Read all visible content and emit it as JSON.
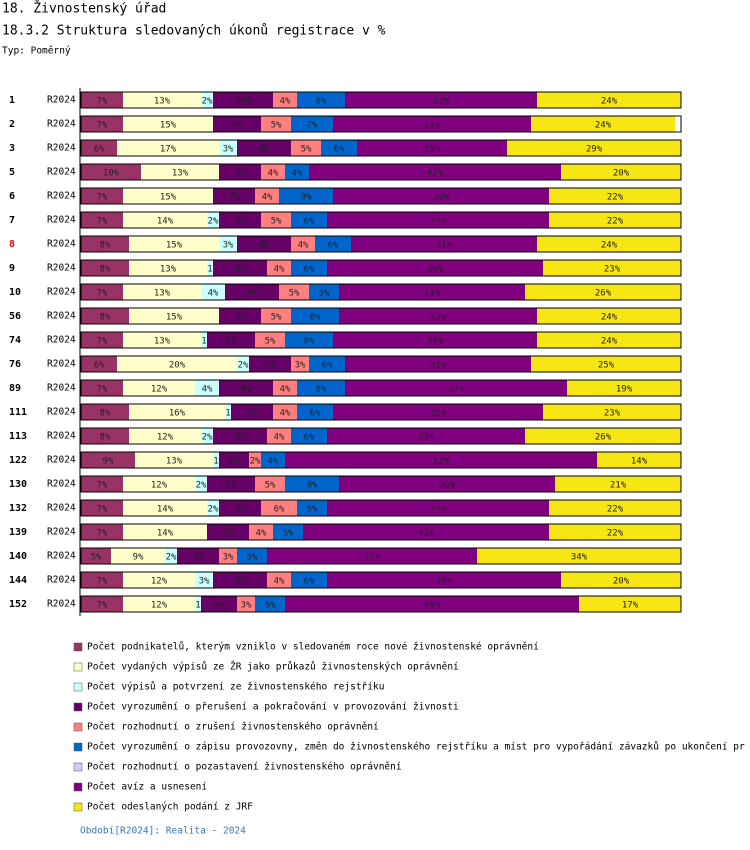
{
  "chart_data": {
    "type": "stacked-bar-horizontal",
    "title": "18. Živnostenský úřad",
    "subtitle": "18.3.2 Struktura sledovaných úkonů registrace v %",
    "chart_kind_label": "Typ: Poměrný",
    "footer": "Období[R2024]: Realita - 2024",
    "period_label": "R2024",
    "highlight": {
      "category": "8",
      "color": "#ff0000"
    },
    "xlim": [
      0,
      100
    ],
    "categories": [
      "1",
      "2",
      "3",
      "5",
      "6",
      "7",
      "8",
      "9",
      "10",
      "56",
      "74",
      "76",
      "89",
      "111",
      "113",
      "122",
      "130",
      "132",
      "139",
      "140",
      "144",
      "152"
    ],
    "series": [
      {
        "name": "Počet podnikatelů, kterým vzniklo v sledovaném roce nové živnostenské oprávnění",
        "color": "#993366",
        "values": [
          7,
          7,
          6,
          10,
          7,
          7,
          8,
          8,
          7,
          8,
          7,
          6,
          7,
          8,
          8,
          9,
          7,
          7,
          7,
          5,
          7,
          7
        ],
        "value_labels": [
          "7%",
          "7%",
          "6%",
          "10%",
          "7%",
          "7%",
          "8%",
          "8%",
          "7%",
          "8%",
          "7%",
          "6%",
          "7%",
          "8%",
          "8%",
          "9%",
          "7%",
          "7%",
          "7%",
          "5%",
          "7%",
          "7%"
        ]
      },
      {
        "name": "Počet vydaných výpisů ze ŽR jako průkazů živnostenských oprávnění",
        "color": "#ffffcc",
        "values": [
          13,
          15,
          17,
          13,
          15,
          14,
          15,
          13,
          13,
          15,
          13,
          20,
          12,
          16,
          12,
          13,
          12,
          14,
          14,
          9,
          12,
          12
        ],
        "value_labels": [
          "13%",
          "15%",
          "17%",
          "13%",
          "15%",
          "14%",
          "15%",
          "13%",
          "13%",
          "15%",
          "13%",
          "20%",
          "12%",
          "16%",
          "12%",
          "13%",
          "12%",
          "14%",
          "14%",
          "9%",
          "12%",
          "12%"
        ]
      },
      {
        "name": "Počet výpisů a potvrzení ze živnostenského rejstříku",
        "color": "#ccffff",
        "values": [
          2,
          0,
          3,
          0,
          0,
          2,
          3,
          1,
          4,
          0,
          1,
          2,
          4,
          1,
          2,
          1,
          2,
          2,
          0,
          2,
          3,
          1
        ],
        "value_labels": [
          "2%",
          null,
          "3%",
          null,
          null,
          "2%",
          "3%",
          "1",
          "4%",
          null,
          "1",
          "2%",
          "4%",
          "1",
          "2%",
          "1",
          "2%",
          "2%",
          null,
          "2%",
          "3%",
          "1"
        ]
      },
      {
        "name": "Počet vyrozumění o přerušení a pokračování v provozování živnosti",
        "color": "#660066",
        "values": [
          10,
          8,
          9,
          7,
          7,
          7,
          9,
          9,
          9,
          7,
          8,
          7,
          9,
          7,
          9,
          5,
          8,
          7,
          7,
          7,
          9,
          6
        ],
        "value_labels": [
          "10%",
          "8%",
          "9%",
          "7%",
          "7%",
          "7%",
          "9%",
          "9%",
          "9%",
          "7%",
          "8%",
          "7%",
          "9%",
          "7%",
          "9%",
          "5%",
          "8%",
          "7%",
          "7%",
          "7%",
          "9%",
          "6%"
        ]
      },
      {
        "name": "Počet rozhodnutí o zrušení živnostenského oprávnění",
        "color": "#ff8080",
        "values": [
          4,
          5,
          5,
          4,
          4,
          5,
          4,
          4,
          5,
          5,
          5,
          3,
          4,
          4,
          4,
          2,
          5,
          6,
          4,
          3,
          4,
          3
        ],
        "value_labels": [
          "4%",
          "5%",
          "5%",
          "4%",
          "4%",
          "5%",
          "4%",
          "4%",
          "5%",
          "5%",
          "5%",
          "3%",
          "4%",
          "4%",
          "4%",
          "2%",
          "5%",
          "6%",
          "4%",
          "3%",
          "4%",
          "3%"
        ]
      },
      {
        "name": "Počet vyrozumění o zápisu provozovny, změn do živnostenského rejstříku a míst pro vypořádání závazků po ukončení pr",
        "color": "#0066cc",
        "values": [
          8,
          7,
          6,
          4,
          9,
          6,
          6,
          6,
          5,
          8,
          8,
          6,
          8,
          6,
          6,
          4,
          9,
          5,
          5,
          5,
          6,
          5
        ],
        "value_labels": [
          "8%",
          "7%",
          "6%",
          "4%",
          "9%",
          "6%",
          "6%",
          "6%",
          "5%",
          "8%",
          "8%",
          "6%",
          "8%",
          "6%",
          "6%",
          "4%",
          "9%",
          "5%",
          "5%",
          "5%",
          "6%",
          "5%"
        ]
      },
      {
        "name": "Počet rozhodnutí o pozastavení živnostenského oprávnění",
        "color": "#ccccff",
        "values": [
          0,
          0,
          0,
          0,
          0,
          0,
          0,
          0,
          0,
          0,
          0,
          0,
          0,
          0,
          0,
          0,
          0,
          0,
          0,
          0,
          0,
          0
        ]
      },
      {
        "name": "Počet avíz a usnesení",
        "color": "#800080",
        "values": [
          32,
          33,
          25,
          42,
          36,
          37,
          31,
          36,
          31,
          33,
          34,
          31,
          37,
          35,
          33,
          52,
          36,
          37,
          41,
          35,
          39,
          49
        ],
        "value_labels": [
          "32%",
          "33%",
          "25%",
          "42%",
          "36%",
          "37%",
          "31%",
          "36%",
          "31%",
          "33%",
          "34%",
          "31%",
          "37%",
          "35%",
          "33%",
          "52%",
          "36%",
          "37%",
          "41%",
          "35%",
          "39%",
          "49%"
        ]
      },
      {
        "name": "Počet odeslaných podání z JRF",
        "color": "#f5e614",
        "values": [
          24,
          24,
          29,
          20,
          22,
          22,
          24,
          23,
          26,
          24,
          24,
          25,
          19,
          23,
          26,
          14,
          21,
          22,
          22,
          34,
          20,
          17
        ],
        "value_labels": [
          "24%",
          "24%",
          "29%",
          "20%",
          "22%",
          "22%",
          "24%",
          "23%",
          "26%",
          "24%",
          "24%",
          "25%",
          "19%",
          "23%",
          "26%",
          "14%",
          "21%",
          "22%",
          "22%",
          "34%",
          "20%",
          "17%"
        ]
      }
    ]
  }
}
